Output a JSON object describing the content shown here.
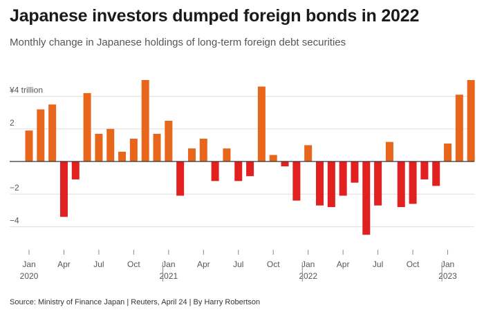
{
  "header": {
    "title": "Japanese investors dumped foreign bonds in 2022",
    "subtitle": "Monthly change in Japanese holdings of long-term foreign debt securities"
  },
  "footer": {
    "source": "Source: Ministry of Finance Japan | Reuters, April 24 | By Harry Robertson"
  },
  "colors": {
    "positive": "#e8651c",
    "negative": "#e0211f",
    "gridline": "#dddddd",
    "zero_line": "#333333"
  },
  "chart_data": {
    "type": "bar",
    "x": [
      "Jan 2020",
      "Feb 2020",
      "Mar 2020",
      "Apr 2020",
      "May 2020",
      "Jun 2020",
      "Jul 2020",
      "Aug 2020",
      "Sep 2020",
      "Oct 2020",
      "Nov 2020",
      "Dec 2020",
      "Jan 2021",
      "Feb 2021",
      "Mar 2021",
      "Apr 2021",
      "May 2021",
      "Jun 2021",
      "Jul 2021",
      "Aug 2021",
      "Sep 2021",
      "Oct 2021",
      "Nov 2021",
      "Dec 2021",
      "Jan 2022",
      "Feb 2022",
      "Mar 2022",
      "Apr 2022",
      "May 2022",
      "Jun 2022",
      "Jul 2022",
      "Aug 2022",
      "Sep 2022",
      "Oct 2022",
      "Nov 2022",
      "Dec 2022",
      "Jan 2023",
      "Feb 2023",
      "Mar 2023"
    ],
    "values": [
      1.9,
      3.2,
      3.5,
      -3.4,
      -1.1,
      4.2,
      1.7,
      2.0,
      0.6,
      1.4,
      5.0,
      1.7,
      2.5,
      -2.1,
      0.8,
      1.4,
      -1.2,
      0.8,
      -1.2,
      -0.9,
      4.6,
      0.4,
      -0.3,
      -2.4,
      1.0,
      -2.7,
      -2.8,
      -2.1,
      -1.3,
      -4.5,
      -2.7,
      1.2,
      -2.8,
      -2.6,
      -1.1,
      -1.5,
      1.1,
      4.1,
      5.0
    ],
    "ytick_labels": [
      {
        "value": 4,
        "label": "¥4 trillion"
      },
      {
        "value": 2,
        "label": "2"
      },
      {
        "value": 0,
        "label": ""
      },
      {
        "value": -2,
        "label": "−2"
      },
      {
        "value": -4,
        "label": "−4"
      }
    ],
    "xtick_labels": [
      {
        "index": 0,
        "month": "Jan",
        "year": "2020"
      },
      {
        "index": 3,
        "month": "Apr",
        "year": ""
      },
      {
        "index": 6,
        "month": "Jul",
        "year": ""
      },
      {
        "index": 9,
        "month": "Oct",
        "year": ""
      },
      {
        "index": 12,
        "month": "Jan",
        "year": "2021"
      },
      {
        "index": 15,
        "month": "Apr",
        "year": ""
      },
      {
        "index": 18,
        "month": "Jul",
        "year": ""
      },
      {
        "index": 21,
        "month": "Oct",
        "year": ""
      },
      {
        "index": 24,
        "month": "Jan",
        "year": "2022"
      },
      {
        "index": 27,
        "month": "Apr",
        "year": ""
      },
      {
        "index": 30,
        "month": "Jul",
        "year": ""
      },
      {
        "index": 33,
        "month": "Oct",
        "year": ""
      },
      {
        "index": 36,
        "month": "Jan",
        "year": "2023"
      }
    ],
    "ylim": [
      -4.5,
      5.2
    ],
    "grid": true,
    "xlabel": "",
    "ylabel": ""
  }
}
